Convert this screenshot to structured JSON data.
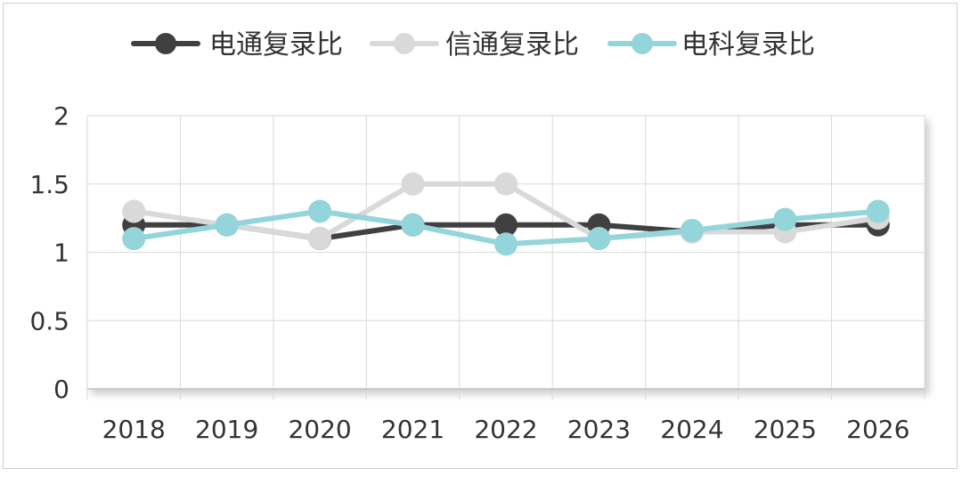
{
  "chart_data": {
    "type": "line",
    "title": "",
    "xlabel": "",
    "ylabel": "",
    "categories": [
      "2018",
      "2019",
      "2020",
      "2021",
      "2022",
      "2023",
      "2024",
      "2025",
      "2026"
    ],
    "ylim": [
      0,
      2
    ],
    "yticks": [
      "0",
      "0.5",
      "1",
      "1.5",
      "2"
    ],
    "grid": true,
    "legend_position": "top",
    "series": [
      {
        "name": "电通复录比",
        "color": "#404040",
        "values": [
          1.2,
          1.2,
          1.1,
          1.2,
          1.2,
          1.2,
          1.15,
          1.2,
          1.2
        ]
      },
      {
        "name": "信通复录比",
        "color": "#d9d9d9",
        "values": [
          1.3,
          1.2,
          1.1,
          1.5,
          1.5,
          1.1,
          1.15,
          1.15,
          1.25
        ]
      },
      {
        "name": "电科复录比",
        "color": "#93d5da",
        "values": [
          1.1,
          1.2,
          1.3,
          1.2,
          1.06,
          1.1,
          1.16,
          1.24,
          1.3
        ]
      }
    ]
  }
}
